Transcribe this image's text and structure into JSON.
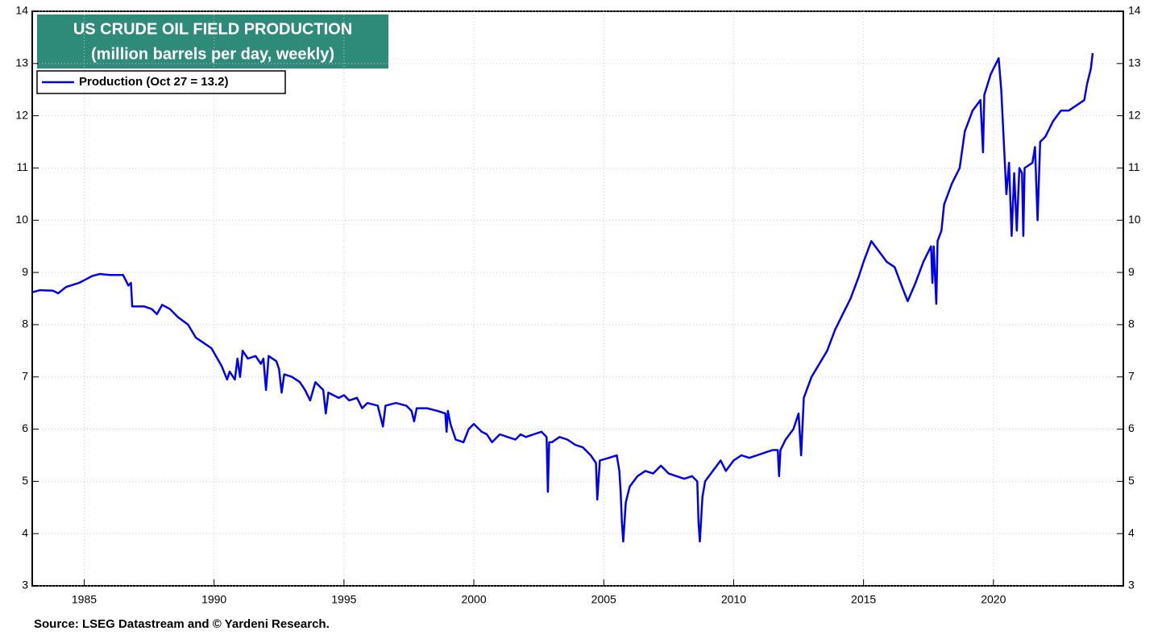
{
  "chart_data": {
    "type": "line",
    "title": "US CRUDE OIL FIELD PRODUCTION",
    "subtitle": "(million barrels per day, weekly)",
    "source": "Source: LSEG Datastream and © Yardeni Research.",
    "x": [
      1983.0,
      1983.3,
      1983.8,
      1984.0,
      1984.3,
      1984.8,
      1985.0,
      1985.3,
      1985.6,
      1986.0,
      1986.5,
      1986.7,
      1986.8,
      1986.85,
      1987.3,
      1987.6,
      1987.8,
      1988.0,
      1988.3,
      1988.6,
      1989.0,
      1989.3,
      1989.6,
      1989.9,
      1990.3,
      1990.5,
      1990.6,
      1990.8,
      1990.9,
      1991.0,
      1991.1,
      1991.3,
      1991.6,
      1991.8,
      1991.9,
      1992.0,
      1992.1,
      1992.4,
      1992.5,
      1992.6,
      1992.7,
      1993.0,
      1993.3,
      1993.5,
      1993.7,
      1993.9,
      1994.2,
      1994.3,
      1994.4,
      1994.8,
      1995.0,
      1995.2,
      1995.5,
      1995.7,
      1995.9,
      1996.3,
      1996.5,
      1996.6,
      1997.0,
      1997.4,
      1997.6,
      1997.7,
      1997.8,
      1998.2,
      1998.6,
      1998.9,
      1998.95,
      1999.0,
      1999.1,
      1999.3,
      1999.6,
      1999.8,
      2000.0,
      2000.3,
      2000.5,
      2000.7,
      2001.0,
      2001.3,
      2001.6,
      2001.8,
      2002.0,
      2002.3,
      2002.6,
      2002.8,
      2002.85,
      2002.9,
      2003.0,
      2003.3,
      2003.6,
      2003.9,
      2004.2,
      2004.5,
      2004.7,
      2004.75,
      2004.85,
      2005.2,
      2005.5,
      2005.6,
      2005.65,
      2005.7,
      2005.75,
      2005.85,
      2006.0,
      2006.3,
      2006.6,
      2006.9,
      2007.2,
      2007.5,
      2007.8,
      2008.1,
      2008.4,
      2008.6,
      2008.65,
      2008.7,
      2008.8,
      2008.9,
      2009.2,
      2009.5,
      2009.7,
      2010.0,
      2010.3,
      2010.6,
      2010.9,
      2011.2,
      2011.5,
      2011.7,
      2011.75,
      2011.8,
      2012.0,
      2012.3,
      2012.5,
      2012.6,
      2012.7,
      2013.0,
      2013.3,
      2013.6,
      2013.9,
      2014.2,
      2014.5,
      2014.8,
      2015.0,
      2015.3,
      2015.6,
      2015.9,
      2016.2,
      2016.5,
      2016.7,
      2017.0,
      2017.3,
      2017.6,
      2017.65,
      2017.7,
      2017.8,
      2017.85,
      2018.0,
      2018.1,
      2018.4,
      2018.7,
      2018.9,
      2019.2,
      2019.5,
      2019.6,
      2019.65,
      2019.9,
      2020.2,
      2020.3,
      2020.4,
      2020.5,
      2020.6,
      2020.7,
      2020.8,
      2020.9,
      2021.0,
      2021.1,
      2021.15,
      2021.2,
      2021.5,
      2021.6,
      2021.7,
      2021.8,
      2022.0,
      2022.3,
      2022.6,
      2022.9,
      2023.2,
      2023.5,
      2023.6,
      2023.75,
      2023.82
    ],
    "series": [
      {
        "name": "Production (Oct 27 = 13.2)",
        "color": "#0000ee",
        "values": [
          8.62,
          8.66,
          8.65,
          8.6,
          8.72,
          8.8,
          8.85,
          8.93,
          8.97,
          8.95,
          8.95,
          8.75,
          8.8,
          8.35,
          8.35,
          8.3,
          8.2,
          8.38,
          8.3,
          8.15,
          8.0,
          7.75,
          7.65,
          7.55,
          7.2,
          6.95,
          7.1,
          6.95,
          7.35,
          7.0,
          7.5,
          7.35,
          7.4,
          7.25,
          7.35,
          6.75,
          7.4,
          7.3,
          7.15,
          6.7,
          7.05,
          7.0,
          6.9,
          6.75,
          6.55,
          6.9,
          6.75,
          6.3,
          6.7,
          6.6,
          6.65,
          6.55,
          6.6,
          6.4,
          6.5,
          6.45,
          6.05,
          6.45,
          6.5,
          6.45,
          6.35,
          6.15,
          6.4,
          6.4,
          6.35,
          6.3,
          5.95,
          6.35,
          6.1,
          5.8,
          5.75,
          6.0,
          6.1,
          5.95,
          5.9,
          5.75,
          5.9,
          5.85,
          5.8,
          5.9,
          5.85,
          5.9,
          5.95,
          5.85,
          4.8,
          5.75,
          5.75,
          5.85,
          5.8,
          5.7,
          5.65,
          5.5,
          5.35,
          4.65,
          5.4,
          5.45,
          5.5,
          5.2,
          4.8,
          4.2,
          3.85,
          4.6,
          4.9,
          5.1,
          5.2,
          5.15,
          5.3,
          5.15,
          5.1,
          5.05,
          5.1,
          5.0,
          4.2,
          3.85,
          4.7,
          5.0,
          5.2,
          5.4,
          5.2,
          5.4,
          5.5,
          5.45,
          5.5,
          5.55,
          5.6,
          5.6,
          5.1,
          5.6,
          5.8,
          6.0,
          6.3,
          5.5,
          6.6,
          7.0,
          7.25,
          7.5,
          7.9,
          8.2,
          8.5,
          8.9,
          9.2,
          9.6,
          9.4,
          9.2,
          9.1,
          8.7,
          8.45,
          8.8,
          9.2,
          9.5,
          8.8,
          9.5,
          8.4,
          9.6,
          9.8,
          10.3,
          10.7,
          11.0,
          11.7,
          12.1,
          12.3,
          11.3,
          12.4,
          12.8,
          13.1,
          12.5,
          11.5,
          10.5,
          11.1,
          9.7,
          10.9,
          9.8,
          11.0,
          10.9,
          9.7,
          11.0,
          11.1,
          11.4,
          10.0,
          11.5,
          11.6,
          11.9,
          12.1,
          12.1,
          12.2,
          12.3,
          12.6,
          12.9,
          13.2
        ]
      }
    ],
    "xlim": [
      1983,
      2025
    ],
    "xticks": [
      1985,
      1990,
      1995,
      2000,
      2005,
      2010,
      2015,
      2020
    ],
    "ylim": [
      3,
      14
    ],
    "yticks": [
      3,
      4,
      5,
      6,
      7,
      8,
      9,
      10,
      11,
      12,
      13,
      14
    ],
    "grid": true
  }
}
